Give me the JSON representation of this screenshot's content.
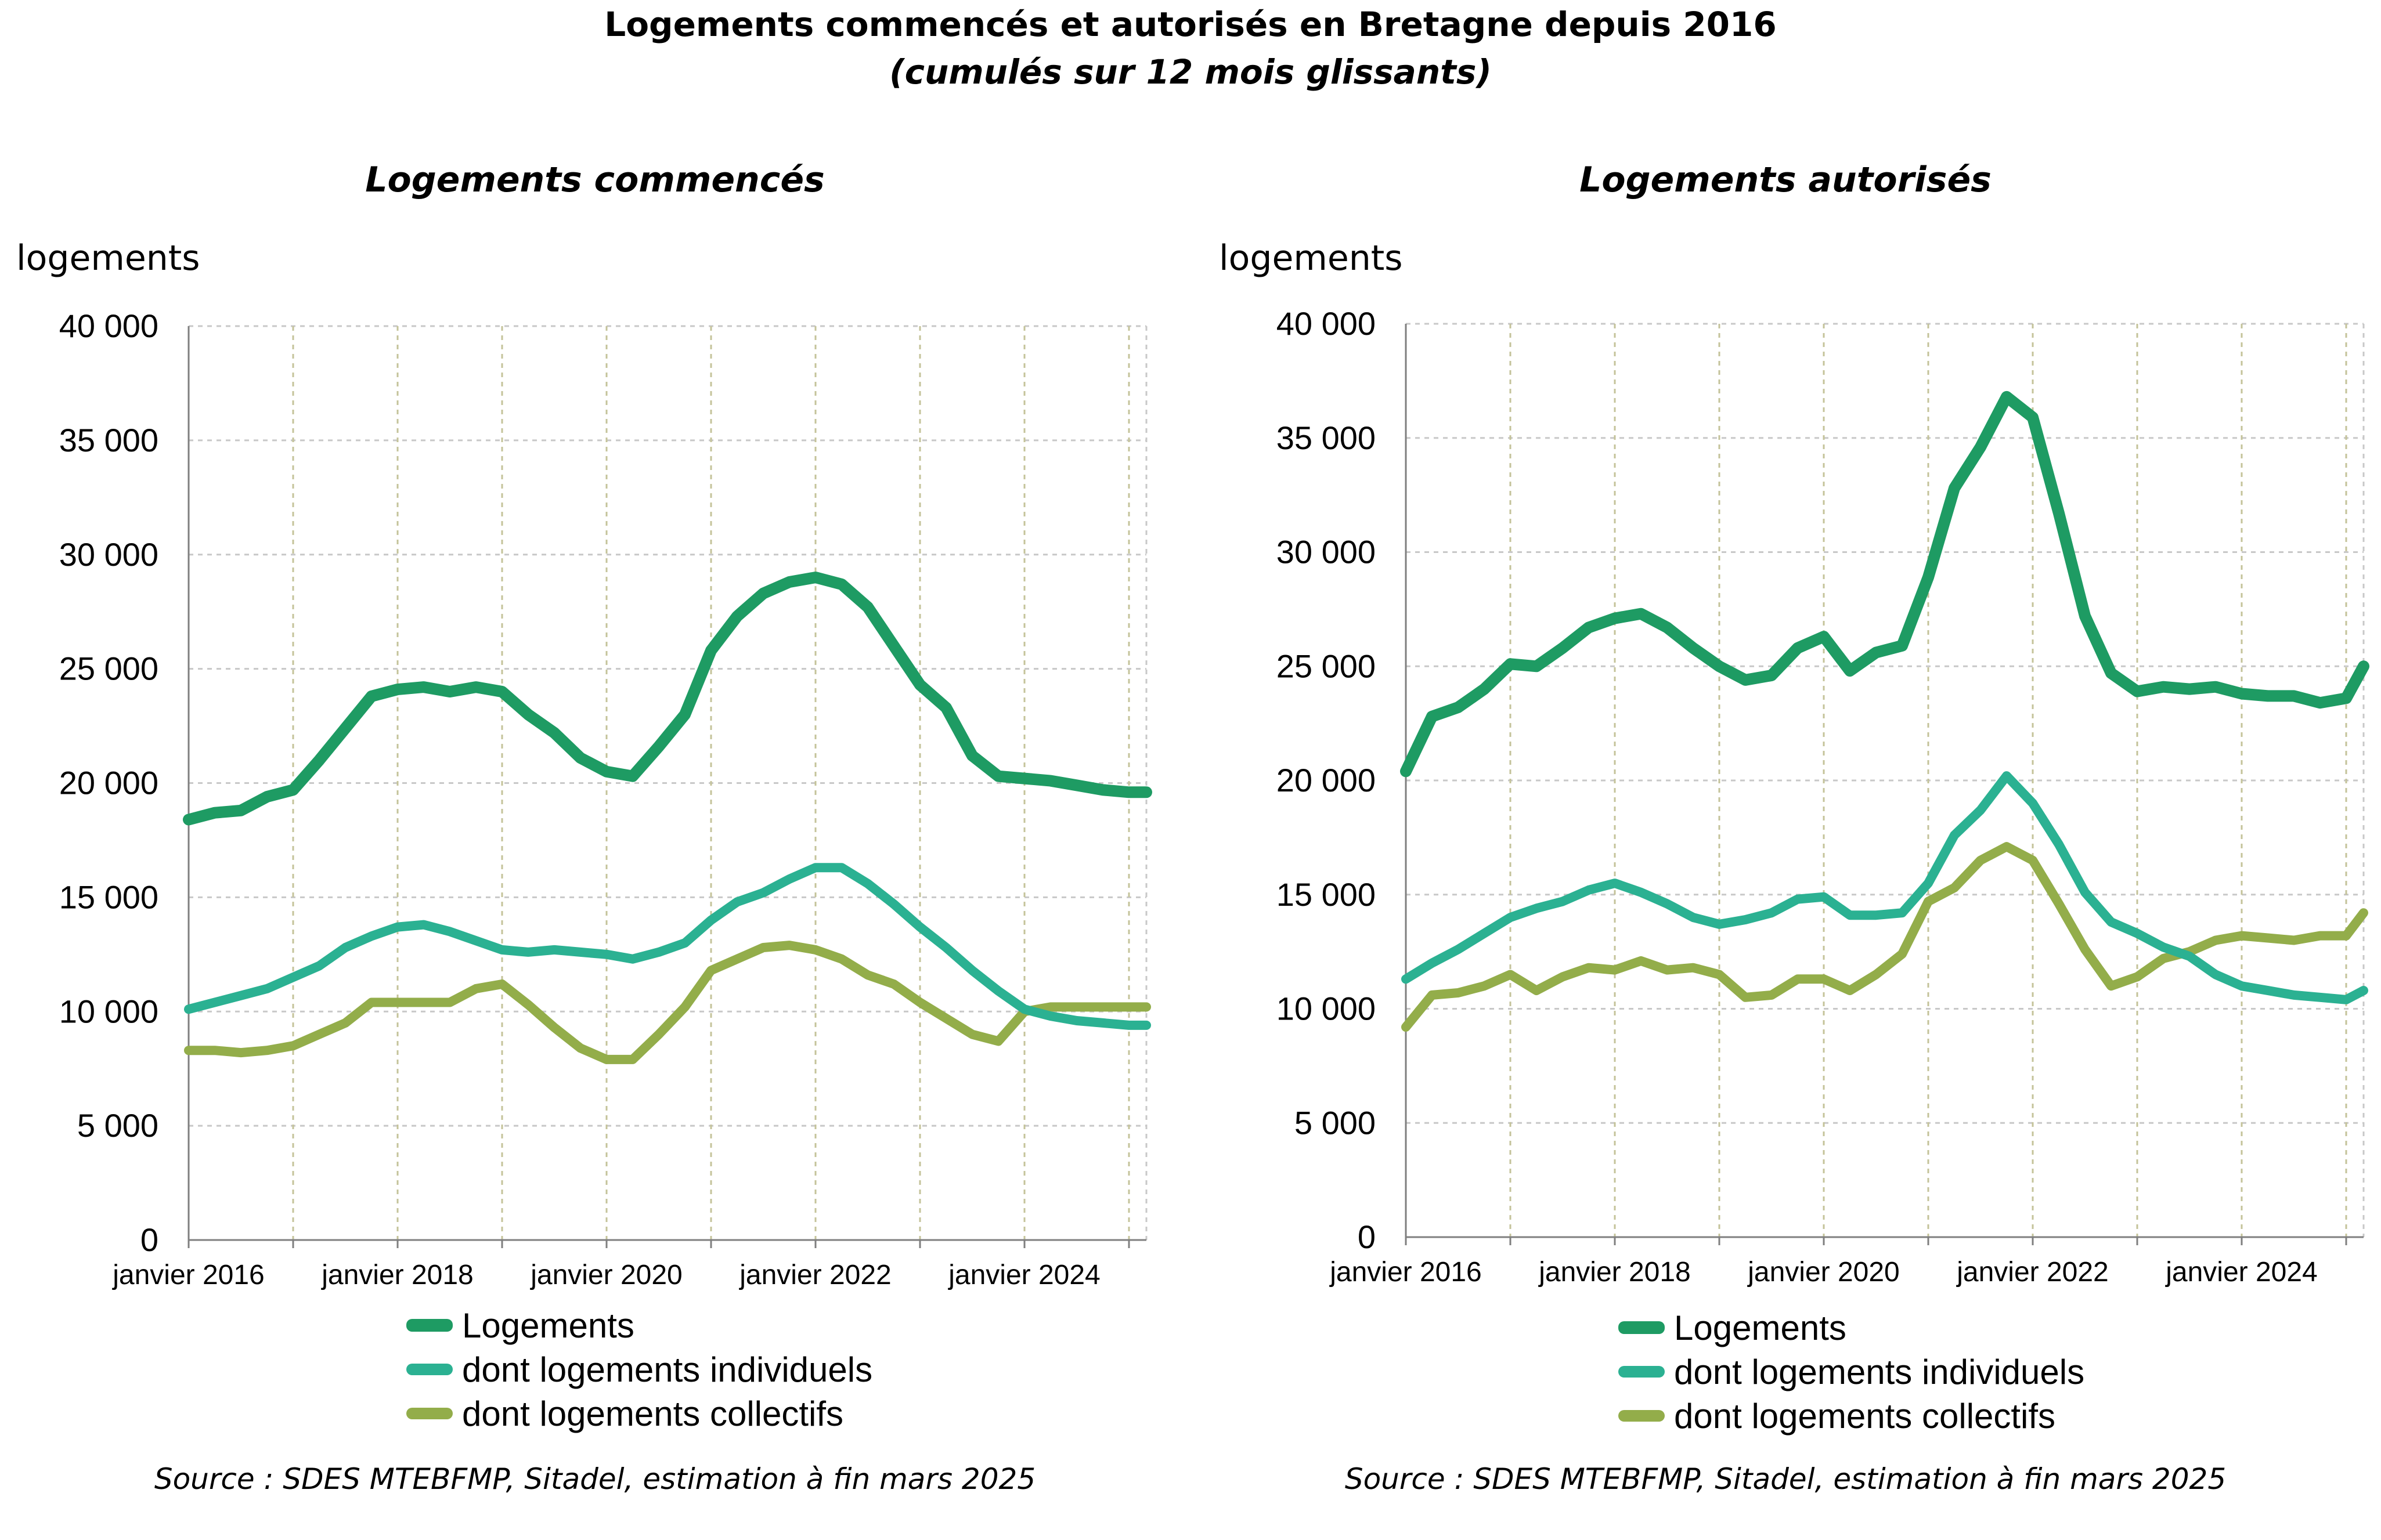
{
  "header": {
    "title": "Logements commencés et autorisés en Bretagne depuis 2016",
    "subtitle": "(cumulés sur 12 mois glissants)"
  },
  "colors": {
    "logements": "#1e9b63",
    "individuels": "#2bb192",
    "collectifs": "#93ad4a"
  },
  "panels": [
    {
      "title": "Logements commencés",
      "yunit": "logements",
      "legend": [
        "Logements",
        "dont logements individuels",
        "dont logements collectifs"
      ],
      "source": "Source : SDES MTEBFMP, Sitadel, estimation à fin mars 2025"
    },
    {
      "title": "Logements autorisés",
      "yunit": "logements",
      "legend": [
        "Logements",
        "dont logements individuels",
        "dont logements collectifs"
      ],
      "source": "Source : SDES MTEBFMP, Sitadel, estimation à fin mars 2025"
    }
  ],
  "chart_data": [
    {
      "type": "line",
      "title": "Logements commencés",
      "ylabel": "logements",
      "ylim": [
        0,
        40000
      ],
      "yticks": [
        0,
        5000,
        10000,
        15000,
        20000,
        25000,
        30000,
        35000,
        40000
      ],
      "ytick_labels": [
        "0",
        "5 000",
        "10 000",
        "15 000",
        "20 000",
        "25 000",
        "30 000",
        "35 000",
        "40 000"
      ],
      "xlim": [
        "2016-01",
        "2025-03"
      ],
      "xtick_labels": [
        "janvier 2016",
        "janvier 2018",
        "janvier 2020",
        "janvier 2022",
        "janvier 2024"
      ],
      "x": [
        "2016-01",
        "2016-04",
        "2016-07",
        "2016-10",
        "2017-01",
        "2017-04",
        "2017-07",
        "2017-10",
        "2018-01",
        "2018-04",
        "2018-07",
        "2018-10",
        "2019-01",
        "2019-04",
        "2019-07",
        "2019-10",
        "2020-01",
        "2020-04",
        "2020-07",
        "2020-10",
        "2021-01",
        "2021-04",
        "2021-07",
        "2021-10",
        "2022-01",
        "2022-04",
        "2022-07",
        "2022-10",
        "2023-01",
        "2023-04",
        "2023-07",
        "2023-10",
        "2024-01",
        "2024-04",
        "2024-07",
        "2024-10",
        "2025-01",
        "2025-03"
      ],
      "series": [
        {
          "name": "Logements",
          "values": [
            18400,
            18700,
            18800,
            19400,
            19700,
            21000,
            22400,
            23800,
            24100,
            24200,
            24000,
            24200,
            24000,
            23000,
            22200,
            21100,
            20500,
            20300,
            21600,
            23000,
            25800,
            27300,
            28300,
            28800,
            29000,
            28700,
            27700,
            26000,
            24300,
            23300,
            21200,
            20300,
            20200,
            20100,
            19900,
            19700,
            19600,
            19600
          ]
        },
        {
          "name": "dont logements individuels",
          "values": [
            10100,
            10400,
            10700,
            11000,
            11500,
            12000,
            12800,
            13300,
            13700,
            13800,
            13500,
            13100,
            12700,
            12600,
            12700,
            12600,
            12500,
            12300,
            12600,
            13000,
            14000,
            14800,
            15200,
            15800,
            16300,
            16300,
            15600,
            14700,
            13700,
            12800,
            11800,
            10900,
            10100,
            9800,
            9600,
            9500,
            9400,
            9400
          ]
        },
        {
          "name": "dont logements collectifs",
          "values": [
            8300,
            8300,
            8200,
            8300,
            8500,
            9000,
            9500,
            10400,
            10400,
            10400,
            10400,
            11000,
            11200,
            10300,
            9300,
            8400,
            7900,
            7900,
            9000,
            10200,
            11800,
            12300,
            12800,
            12900,
            12700,
            12300,
            11600,
            11200,
            10400,
            9700,
            9000,
            8700,
            10000,
            10200,
            10200,
            10200,
            10200,
            10200
          ]
        }
      ]
    },
    {
      "type": "line",
      "title": "Logements autorisés",
      "ylabel": "logements",
      "ylim": [
        0,
        40000
      ],
      "yticks": [
        0,
        5000,
        10000,
        15000,
        20000,
        25000,
        30000,
        35000,
        40000
      ],
      "ytick_labels": [
        "0",
        "5 000",
        "10 000",
        "15 000",
        "20 000",
        "25 000",
        "30 000",
        "35 000",
        "40 000"
      ],
      "xlim": [
        "2016-01",
        "2025-03"
      ],
      "xtick_labels": [
        "janvier 2016",
        "janvier 2018",
        "janvier 2020",
        "janvier 2022",
        "janvier 2024"
      ],
      "x": [
        "2016-01",
        "2016-04",
        "2016-07",
        "2016-10",
        "2017-01",
        "2017-04",
        "2017-07",
        "2017-10",
        "2018-01",
        "2018-04",
        "2018-07",
        "2018-10",
        "2019-01",
        "2019-04",
        "2019-07",
        "2019-10",
        "2020-01",
        "2020-04",
        "2020-07",
        "2020-10",
        "2021-01",
        "2021-04",
        "2021-07",
        "2021-10",
        "2022-01",
        "2022-04",
        "2022-07",
        "2022-10",
        "2023-01",
        "2023-04",
        "2023-07",
        "2023-10",
        "2024-01",
        "2024-04",
        "2024-07",
        "2024-10",
        "2025-01",
        "2025-03"
      ],
      "series": [
        {
          "name": "Logements",
          "values": [
            20400,
            22800,
            23200,
            24000,
            25100,
            25000,
            25800,
            26700,
            27100,
            27300,
            26700,
            25800,
            25000,
            24400,
            24600,
            25800,
            26300,
            24800,
            25600,
            25900,
            28900,
            32800,
            34600,
            36800,
            35900,
            31700,
            27200,
            24700,
            23900,
            24100,
            24000,
            24100,
            23800,
            23700,
            23700,
            23400,
            23600,
            25000
          ]
        },
        {
          "name": "dont logements individuels",
          "values": [
            11300,
            12000,
            12600,
            13300,
            14000,
            14400,
            14700,
            15200,
            15500,
            15100,
            14600,
            14000,
            13700,
            13900,
            14200,
            14800,
            14900,
            14100,
            14100,
            14200,
            15500,
            17600,
            18700,
            20200,
            19000,
            17200,
            15100,
            13800,
            13300,
            12700,
            12300,
            11500,
            11000,
            10800,
            10600,
            10500,
            10400,
            10800
          ]
        },
        {
          "name": "dont logements collectifs",
          "values": [
            9200,
            10600,
            10700,
            11000,
            11500,
            10800,
            11400,
            11800,
            11700,
            12100,
            11700,
            11800,
            11500,
            10500,
            10600,
            11300,
            11300,
            10800,
            11500,
            12400,
            14700,
            15300,
            16500,
            17100,
            16500,
            14600,
            12600,
            11000,
            11400,
            12200,
            12500,
            13000,
            13200,
            13100,
            13000,
            13200,
            13200,
            14200
          ]
        }
      ]
    }
  ]
}
